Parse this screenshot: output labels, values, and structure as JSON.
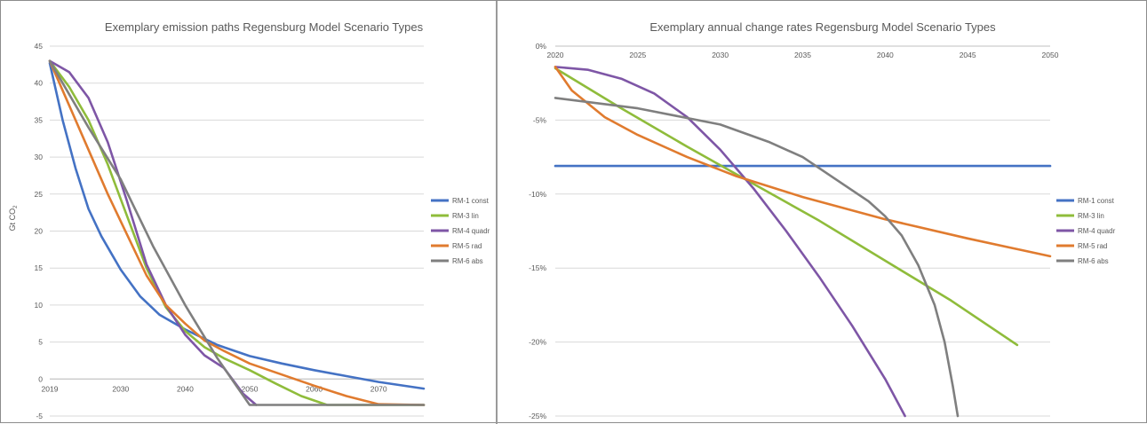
{
  "chart_data": [
    {
      "type": "line",
      "title": "Exemplary emission paths Regensburg Model Scenario Types",
      "ylabel": "Gt CO",
      "ylabel_subscript": "2",
      "xlabel": "",
      "xlim": [
        2019,
        2077
      ],
      "ylim": [
        -5,
        45
      ],
      "x_ticks": [
        2019,
        2030,
        2040,
        2050,
        2060,
        2070
      ],
      "x_tick_labels": [
        "2019",
        "2030",
        "2040",
        "2050",
        "2060",
        "2070"
      ],
      "y_ticks": [
        45,
        40,
        35,
        30,
        25,
        20,
        15,
        10,
        5,
        0,
        -5
      ],
      "y_tick_labels": [
        "45",
        "40",
        "35",
        "30",
        "25",
        "20",
        "15",
        "10",
        "5",
        "0",
        "-5"
      ],
      "grid": true,
      "legend": "right",
      "series": [
        {
          "name": "RM-1 const",
          "color": "#4472C4",
          "points": [
            [
              2019,
              42.7
            ],
            [
              2021,
              35
            ],
            [
              2023,
              28.5
            ],
            [
              2025,
              23
            ],
            [
              2027,
              19.3
            ],
            [
              2030,
              14.8
            ],
            [
              2033,
              11.2
            ],
            [
              2036,
              8.7
            ],
            [
              2040,
              6.7
            ],
            [
              2045,
              4.6
            ],
            [
              2050,
              3.1
            ],
            [
              2055,
              2.1
            ],
            [
              2060,
              1.2
            ],
            [
              2065,
              0.4
            ],
            [
              2070,
              -0.4
            ],
            [
              2077,
              -1.3
            ]
          ]
        },
        {
          "name": "RM-3 lin",
          "color": "#8FBC3B",
          "points": [
            [
              2019,
              43
            ],
            [
              2022,
              39.5
            ],
            [
              2025,
              35
            ],
            [
              2028,
              29
            ],
            [
              2031,
              22
            ],
            [
              2034,
              15
            ],
            [
              2037,
              9.7
            ],
            [
              2040,
              6.5
            ],
            [
              2043,
              4.3
            ],
            [
              2046,
              2.8
            ],
            [
              2050,
              1.2
            ],
            [
              2054,
              -0.6
            ],
            [
              2058,
              -2.3
            ],
            [
              2062,
              -3.5
            ],
            [
              2077,
              -3.5
            ]
          ]
        },
        {
          "name": "RM-4 quadr",
          "color": "#7E56A6",
          "points": [
            [
              2019,
              43
            ],
            [
              2022,
              41.5
            ],
            [
              2025,
              38
            ],
            [
              2028,
              32
            ],
            [
              2031,
              24
            ],
            [
              2034,
              15.5
            ],
            [
              2037,
              10
            ],
            [
              2040,
              6
            ],
            [
              2043,
              3.2
            ],
            [
              2046,
              1.5
            ],
            [
              2049,
              -2
            ],
            [
              2051,
              -3.5
            ]
          ]
        },
        {
          "name": "RM-5 rad",
          "color": "#E07B2F",
          "points": [
            [
              2019,
              43
            ],
            [
              2022,
              37
            ],
            [
              2025,
              31
            ],
            [
              2028,
              25
            ],
            [
              2031,
              19.5
            ],
            [
              2034,
              14
            ],
            [
              2037,
              10
            ],
            [
              2040,
              7.5
            ],
            [
              2043,
              5.2
            ],
            [
              2046,
              3.8
            ],
            [
              2050,
              2.1
            ],
            [
              2055,
              0.6
            ],
            [
              2060,
              -0.9
            ],
            [
              2065,
              -2.3
            ],
            [
              2070,
              -3.4
            ],
            [
              2077,
              -3.5
            ]
          ]
        },
        {
          "name": "RM-6 abs",
          "color": "#7F7F7F",
          "points": [
            [
              2019,
              43
            ],
            [
              2025,
              34
            ],
            [
              2030,
              27
            ],
            [
              2035,
              18
            ],
            [
              2040,
              10
            ],
            [
              2045,
              2.8
            ],
            [
              2048,
              -1
            ],
            [
              2050,
              -3.5
            ],
            [
              2077,
              -3.5
            ]
          ]
        }
      ]
    },
    {
      "type": "line",
      "title": "Exemplary annual change rates Regensburg Model Scenario Types",
      "xlabel": "",
      "ylabel": "",
      "xlim": [
        2020,
        2050
      ],
      "ylim": [
        -25,
        0
      ],
      "x_ticks": [
        2020,
        2025,
        2030,
        2035,
        2040,
        2045,
        2050
      ],
      "x_tick_labels": [
        "2020",
        "2025",
        "2030",
        "2035",
        "2040",
        "2045",
        "2050"
      ],
      "y_ticks": [
        0,
        -5,
        -10,
        -15,
        -20,
        -25
      ],
      "y_tick_labels": [
        "0%",
        "-5%",
        "-10%",
        "-15%",
        "-20%",
        "-25%"
      ],
      "grid": true,
      "legend": "right",
      "series": [
        {
          "name": "RM-1 const",
          "color": "#4472C4",
          "points": [
            [
              2020,
              -8.1
            ],
            [
              2050,
              -8.1
            ]
          ]
        },
        {
          "name": "RM-3 lin",
          "color": "#8FBC3B",
          "points": [
            [
              2020,
              -1.5
            ],
            [
              2024,
              -4.2
            ],
            [
              2028,
              -6.8
            ],
            [
              2032,
              -9.3
            ],
            [
              2036,
              -11.8
            ],
            [
              2040,
              -14.5
            ],
            [
              2044,
              -17.2
            ],
            [
              2048,
              -20.2
            ]
          ]
        },
        {
          "name": "RM-4 quadr",
          "color": "#7E56A6",
          "points": [
            [
              2020,
              -1.4
            ],
            [
              2022,
              -1.6
            ],
            [
              2024,
              -2.2
            ],
            [
              2026,
              -3.2
            ],
            [
              2028,
              -4.8
            ],
            [
              2030,
              -7
            ],
            [
              2032,
              -9.6
            ],
            [
              2034,
              -12.5
            ],
            [
              2036,
              -15.6
            ],
            [
              2038,
              -18.9
            ],
            [
              2040,
              -22.5
            ],
            [
              2041.2,
              -25
            ]
          ]
        },
        {
          "name": "RM-5 rad",
          "color": "#E07B2F",
          "points": [
            [
              2020,
              -1.4
            ],
            [
              2021,
              -3
            ],
            [
              2023,
              -4.8
            ],
            [
              2025,
              -6
            ],
            [
              2028,
              -7.5
            ],
            [
              2031,
              -8.8
            ],
            [
              2035,
              -10.2
            ],
            [
              2040,
              -11.7
            ],
            [
              2045,
              -13
            ],
            [
              2050,
              -14.2
            ]
          ]
        },
        {
          "name": "RM-6 abs",
          "color": "#7F7F7F",
          "points": [
            [
              2020,
              -3.5
            ],
            [
              2025,
              -4.2
            ],
            [
              2030,
              -5.3
            ],
            [
              2033,
              -6.5
            ],
            [
              2035,
              -7.5
            ],
            [
              2037,
              -9
            ],
            [
              2039,
              -10.5
            ],
            [
              2040,
              -11.5
            ],
            [
              2041,
              -12.8
            ],
            [
              2042,
              -14.8
            ],
            [
              2043,
              -17.5
            ],
            [
              2043.6,
              -20
            ],
            [
              2044.1,
              -23
            ],
            [
              2044.4,
              -25
            ]
          ]
        }
      ]
    }
  ]
}
